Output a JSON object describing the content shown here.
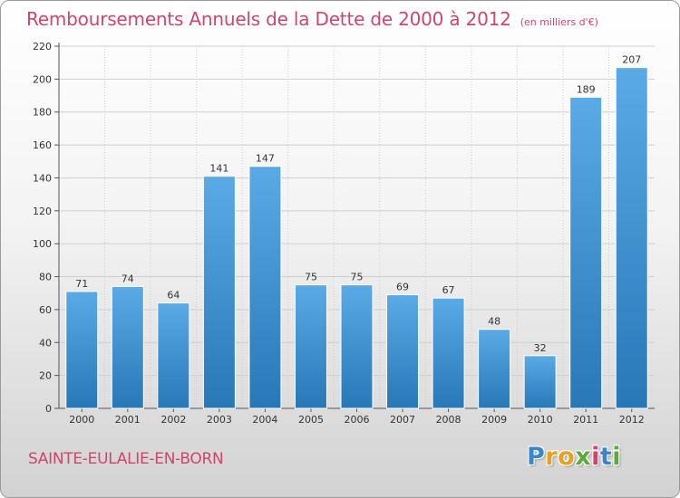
{
  "chart_data": {
    "type": "bar",
    "title": "Remboursements Annuels de la Dette de 2000 à 2012",
    "unit_label": "(en milliers d'€)",
    "categories": [
      "2000",
      "2001",
      "2002",
      "2003",
      "2004",
      "2005",
      "2006",
      "2007",
      "2008",
      "2009",
      "2010",
      "2011",
      "2012"
    ],
    "values": [
      71,
      74,
      64,
      141,
      147,
      75,
      75,
      69,
      67,
      48,
      32,
      189,
      207
    ],
    "data_labels": [
      "71",
      "74",
      "64",
      "141",
      "147",
      "75",
      "75",
      "69",
      "67",
      "48",
      "32",
      "189",
      "207"
    ],
    "ylim": [
      0,
      220
    ],
    "yticks": [
      0,
      20,
      40,
      60,
      80,
      100,
      120,
      140,
      160,
      180,
      200,
      220
    ],
    "grid": true,
    "legend": "none",
    "colors": {
      "bar_light": "#5aaae6",
      "bar_dark": "#2878b8",
      "title": "#d0456e",
      "grid": "#cfcfcf"
    }
  },
  "commune": "SAINTE-EULALIE-EN-BORN",
  "logo": {
    "letters": [
      {
        "char": "P",
        "color": "#3a86c8"
      },
      {
        "char": "r",
        "color": "#e8a020"
      },
      {
        "char": "o",
        "color": "#e8a020"
      },
      {
        "char": "x",
        "color": "#5aab3a"
      },
      {
        "char": "i",
        "color": "#d0456e"
      },
      {
        "char": "t",
        "color": "#3a86c8"
      },
      {
        "char": "i",
        "color": "#5aab3a"
      }
    ]
  }
}
